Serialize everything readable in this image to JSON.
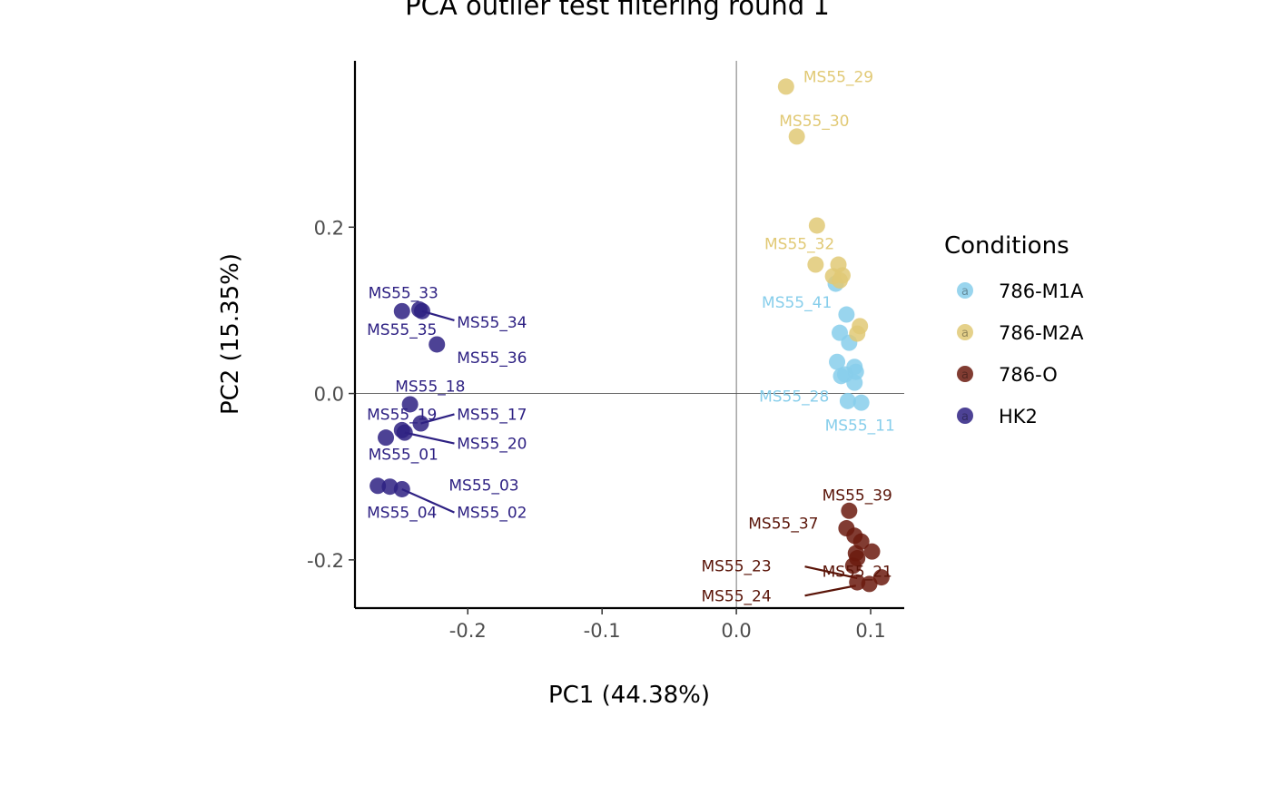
{
  "chart_data": {
    "type": "scatter",
    "title": "PCA outlier test filtering round 1",
    "xlabel": "PC1 (44.38%)",
    "ylabel": "PC2 (15.35%)",
    "xlim": [
      -0.284,
      0.125
    ],
    "ylim": [
      -0.258,
      0.4
    ],
    "xticks": [
      {
        "value": -0.2,
        "label": "-0.2"
      },
      {
        "value": -0.1,
        "label": "-0.1"
      },
      {
        "value": 0.0,
        "label": "0.0"
      },
      {
        "value": 0.1,
        "label": "0.1"
      }
    ],
    "yticks": [
      {
        "value": -0.2,
        "label": "-0.2"
      },
      {
        "value": 0.0,
        "label": "0.0"
      },
      {
        "value": 0.2,
        "label": "0.2"
      }
    ],
    "grid": false,
    "reference_lines": {
      "x": 0,
      "y": 0
    },
    "legend": {
      "title": "Conditions",
      "placement": "right",
      "entries": [
        {
          "label": "786-M1A",
          "color": "#87CEEB"
        },
        {
          "label": "786-M2A",
          "color": "#E1C975"
        },
        {
          "label": "786-O",
          "color": "#6B1A0E"
        },
        {
          "label": "HK2",
          "color": "#2E2183"
        }
      ],
      "key_glyph": "a"
    },
    "series": [
      {
        "name": "786-M1A",
        "color": "#87CEEB",
        "label_color": "#87CEEB",
        "points": [
          {
            "x": 0.082,
            "y": 0.095
          },
          {
            "x": 0.077,
            "y": 0.073
          },
          {
            "x": 0.084,
            "y": 0.061
          },
          {
            "x": 0.074,
            "y": 0.132
          },
          {
            "x": 0.075,
            "y": 0.038
          },
          {
            "x": 0.088,
            "y": 0.032
          },
          {
            "x": 0.089,
            "y": 0.026
          },
          {
            "x": 0.078,
            "y": 0.021
          },
          {
            "x": 0.081,
            "y": 0.023
          },
          {
            "x": 0.088,
            "y": 0.013
          },
          {
            "x": 0.083,
            "y": -0.009
          },
          {
            "x": 0.093,
            "y": -0.011
          }
        ],
        "labels": [
          {
            "text": "MS55_41",
            "x": 0.045,
            "y": 0.11
          },
          {
            "text": "MS55_28",
            "x": 0.043,
            "y": -0.003
          },
          {
            "text": "MS55_11",
            "x": 0.092,
            "y": -0.038
          }
        ]
      },
      {
        "name": "786-M2A",
        "color": "#E1C975",
        "label_color": "#E1C975",
        "points": [
          {
            "x": 0.037,
            "y": 0.369
          },
          {
            "x": 0.045,
            "y": 0.309
          },
          {
            "x": 0.06,
            "y": 0.202
          },
          {
            "x": 0.059,
            "y": 0.155
          },
          {
            "x": 0.076,
            "y": 0.155
          },
          {
            "x": 0.072,
            "y": 0.141
          },
          {
            "x": 0.079,
            "y": 0.142
          },
          {
            "x": 0.077,
            "y": 0.136
          },
          {
            "x": 0.092,
            "y": 0.081
          },
          {
            "x": 0.09,
            "y": 0.072
          }
        ],
        "labels": [
          {
            "text": "MS55_29",
            "x": 0.076,
            "y": 0.381
          },
          {
            "text": "MS55_30",
            "x": 0.058,
            "y": 0.328
          },
          {
            "text": "MS55_32",
            "x": 0.047,
            "y": 0.18
          }
        ]
      },
      {
        "name": "786-O",
        "color": "#6B1A0E",
        "label_color": "#5A1408",
        "points": [
          {
            "x": 0.084,
            "y": -0.141
          },
          {
            "x": 0.082,
            "y": -0.162
          },
          {
            "x": 0.088,
            "y": -0.171
          },
          {
            "x": 0.093,
            "y": -0.178
          },
          {
            "x": 0.101,
            "y": -0.19
          },
          {
            "x": 0.089,
            "y": -0.192
          },
          {
            "x": 0.09,
            "y": -0.198
          },
          {
            "x": 0.087,
            "y": -0.207
          },
          {
            "x": 0.108,
            "y": -0.221
          },
          {
            "x": 0.09,
            "y": -0.227
          },
          {
            "x": 0.099,
            "y": -0.229
          }
        ],
        "labels": [
          {
            "text": "MS55_39",
            "x": 0.09,
            "y": -0.122
          },
          {
            "text": "MS55_37",
            "x": 0.035,
            "y": -0.156
          },
          {
            "text": "MS55_23",
            "x": 0.0,
            "y": -0.207
          },
          {
            "text": "MS55_21",
            "x": 0.09,
            "y": -0.214
          },
          {
            "text": "MS55_24",
            "x": 0.0,
            "y": -0.243
          }
        ],
        "segments": [
          {
            "x1": 0.051,
            "y1": -0.208,
            "x2": 0.09,
            "y2": -0.222
          },
          {
            "x1": 0.051,
            "y1": -0.243,
            "x2": 0.089,
            "y2": -0.231
          }
        ]
      },
      {
        "name": "HK2",
        "color": "#2E2183",
        "label_color": "#2E2183",
        "points": [
          {
            "x": -0.249,
            "y": 0.099
          },
          {
            "x": -0.236,
            "y": 0.101
          },
          {
            "x": -0.234,
            "y": 0.099
          },
          {
            "x": -0.223,
            "y": 0.059
          },
          {
            "x": -0.243,
            "y": -0.013
          },
          {
            "x": -0.235,
            "y": -0.036
          },
          {
            "x": -0.249,
            "y": -0.044
          },
          {
            "x": -0.247,
            "y": -0.047
          },
          {
            "x": -0.261,
            "y": -0.053
          },
          {
            "x": -0.267,
            "y": -0.111
          },
          {
            "x": -0.258,
            "y": -0.112
          },
          {
            "x": -0.249,
            "y": -0.115
          }
        ],
        "labels": [
          {
            "text": "MS55_33",
            "x": -0.248,
            "y": 0.121
          },
          {
            "text": "MS55_35",
            "x": -0.249,
            "y": 0.077
          },
          {
            "text": "MS55_34",
            "x": -0.182,
            "y": 0.086
          },
          {
            "text": "MS55_36",
            "x": -0.182,
            "y": 0.043
          },
          {
            "text": "MS55_18",
            "x": -0.228,
            "y": 0.009
          },
          {
            "text": "MS55_19",
            "x": -0.249,
            "y": -0.025
          },
          {
            "text": "MS55_17",
            "x": -0.182,
            "y": -0.025
          },
          {
            "text": "MS55_20",
            "x": -0.182,
            "y": -0.06
          },
          {
            "text": "MS55_01",
            "x": -0.248,
            "y": -0.073
          },
          {
            "text": "MS55_03",
            "x": -0.188,
            "y": -0.11
          },
          {
            "text": "MS55_04",
            "x": -0.249,
            "y": -0.143
          },
          {
            "text": "MS55_02",
            "x": -0.182,
            "y": -0.143
          }
        ],
        "segments": [
          {
            "x1": -0.234,
            "y1": 0.099,
            "x2": -0.21,
            "y2": 0.088
          },
          {
            "x1": -0.235,
            "y1": -0.036,
            "x2": -0.21,
            "y2": -0.025
          },
          {
            "x1": -0.247,
            "y1": -0.047,
            "x2": -0.21,
            "y2": -0.06
          },
          {
            "x1": -0.249,
            "y1": -0.115,
            "x2": -0.21,
            "y2": -0.143
          }
        ]
      }
    ]
  }
}
